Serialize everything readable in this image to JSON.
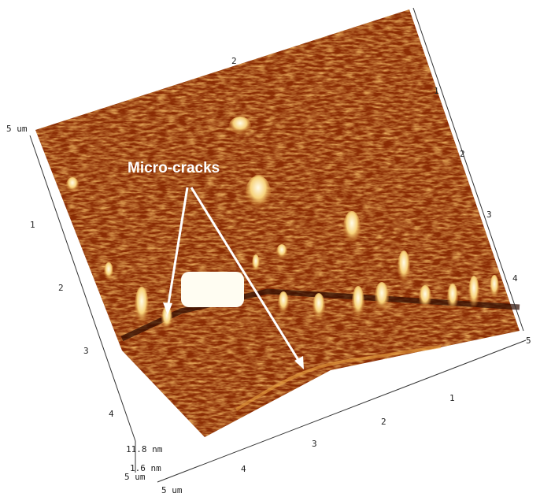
{
  "annotation": "Micro-cracks",
  "axes": {
    "left": {
      "end_label": "5 um",
      "ticks": [
        "1",
        "2",
        "3",
        "4"
      ]
    },
    "bottom": {
      "ticks": [
        "4",
        "3",
        "2",
        "1"
      ],
      "end_label": "5"
    },
    "right": {
      "ticks": [
        "1",
        "2",
        "3",
        "4"
      ]
    },
    "top_tick": "2",
    "z": {
      "max": "11.8 nm",
      "min": "1.6 nm",
      "scale": "5 um"
    },
    "bottom_corner": "5 um"
  }
}
